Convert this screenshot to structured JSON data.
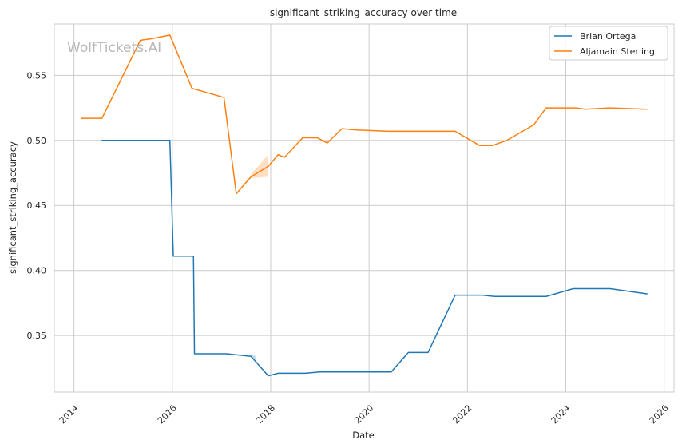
{
  "chart_data": {
    "type": "line",
    "title": "significant_striking_accuracy over time",
    "xlabel": "Date",
    "ylabel": "significant_striking_accuracy",
    "watermark": "WolfTickets.AI",
    "xlim": [
      2013.6,
      2026.2
    ],
    "ylim": [
      0.3065,
      0.5895
    ],
    "x_ticks": [
      2014,
      2016,
      2018,
      2020,
      2022,
      2024,
      2026
    ],
    "y_ticks": [
      0.35,
      0.4,
      0.45,
      0.5,
      0.55
    ],
    "y_tick_labels": [
      "0.35",
      "0.40",
      "0.45",
      "0.50",
      "0.55"
    ],
    "grid": true,
    "legend_position": "top-right",
    "series": [
      {
        "name": "Brian Ortega",
        "color": "#1f77b4",
        "x": [
          2014.57,
          2015.95,
          2016.02,
          2016.43,
          2016.45,
          2017.1,
          2017.6,
          2017.95,
          2018.15,
          2018.7,
          2019.0,
          2020.45,
          2020.8,
          2021.2,
          2021.75,
          2022.3,
          2022.55,
          2023.2,
          2023.6,
          2024.15,
          2024.9,
          2025.65
        ],
        "y": [
          0.5,
          0.5,
          0.411,
          0.411,
          0.336,
          0.336,
          0.334,
          0.319,
          0.321,
          0.321,
          0.322,
          0.322,
          0.337,
          0.337,
          0.381,
          0.381,
          0.38,
          0.38,
          0.38,
          0.386,
          0.386,
          0.382
        ],
        "band": [
          {
            "x": 2017.6,
            "lo": 0.333,
            "hi": 0.336
          },
          {
            "x": 2017.7,
            "lo": 0.331,
            "hi": 0.334
          }
        ]
      },
      {
        "name": "Aljamain Sterling",
        "color": "#ff7f0e",
        "x": [
          2014.15,
          2014.57,
          2015.35,
          2015.55,
          2015.95,
          2016.4,
          2017.05,
          2017.3,
          2017.6,
          2017.95,
          2018.15,
          2018.28,
          2018.65,
          2018.95,
          2019.15,
          2019.45,
          2019.75,
          2020.4,
          2020.9,
          2021.25,
          2021.75,
          2022.25,
          2022.5,
          2022.8,
          2023.35,
          2023.6,
          2024.2,
          2024.4,
          2024.9,
          2025.65
        ],
        "y": [
          0.517,
          0.517,
          0.577,
          0.578,
          0.581,
          0.54,
          0.533,
          0.459,
          0.472,
          0.48,
          0.489,
          0.487,
          0.502,
          0.502,
          0.498,
          0.509,
          0.508,
          0.507,
          0.507,
          0.507,
          0.507,
          0.496,
          0.496,
          0.5,
          0.512,
          0.525,
          0.525,
          0.524,
          0.525,
          0.524
        ],
        "band": [
          {
            "x": 2017.6,
            "lo": 0.471,
            "hi": 0.474
          },
          {
            "x": 2017.95,
            "lo": 0.472,
            "hi": 0.489
          }
        ]
      }
    ]
  }
}
